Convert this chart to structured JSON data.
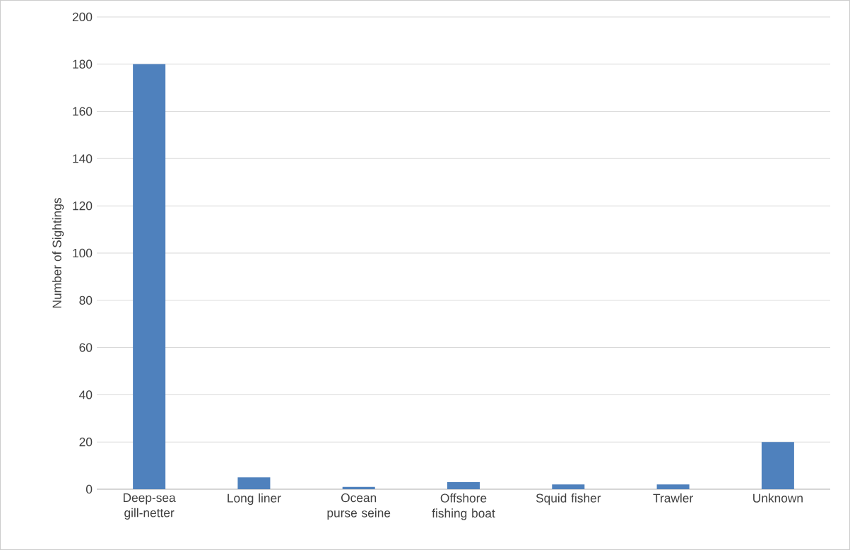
{
  "chart_data": {
    "type": "bar",
    "ylabel": "Number of Sightings",
    "categories": [
      "Deep-sea gill-netter",
      "Long liner",
      "Ocean purse seine",
      "Offshore fishing boat",
      "Squid fisher",
      "Trawler",
      "Unknown"
    ],
    "values": [
      180,
      5,
      1,
      3,
      2,
      2,
      20
    ],
    "color": "#4f81bd",
    "ylim": [
      0,
      200
    ],
    "yticks": [
      0,
      20,
      40,
      60,
      80,
      100,
      120,
      140,
      160,
      180,
      200
    ],
    "grid": "y"
  }
}
